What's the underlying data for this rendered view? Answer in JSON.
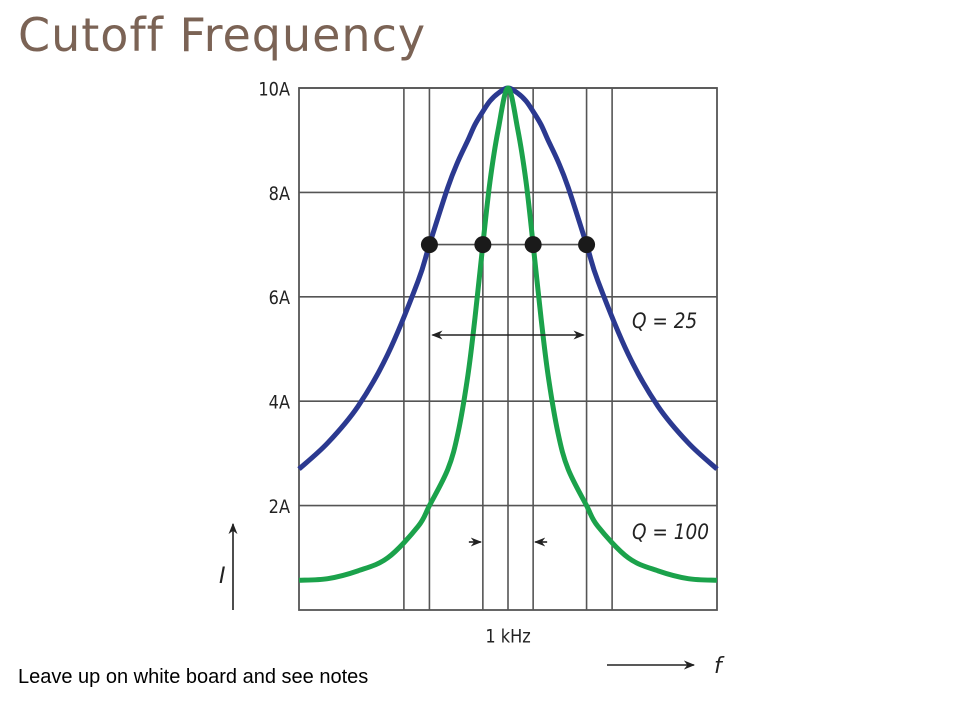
{
  "title": "Cutoff Frequency",
  "note": "Leave up on white board and see notes",
  "chart_data": {
    "type": "line",
    "x_label": "f",
    "y_label": "I",
    "x": [
      0.9468,
      0.9541,
      0.9618,
      0.9694,
      0.9771,
      0.98,
      0.9847,
      0.9873,
      0.9898,
      0.9916,
      0.9936,
      0.9954,
      0.9975,
      1,
      1.0025,
      1.0046,
      1.0064,
      1.0084,
      1.0102,
      1.0127,
      1.0153,
      1.02,
      1.0229,
      1.0306,
      1.0382,
      1.0459,
      1.0532
    ],
    "series": [
      {
        "name": "Q = 25",
        "color": "#2b3990",
        "values": [
          2.7,
          3.2,
          3.9,
          4.9,
          6.3,
          7.0,
          8.1,
          8.6,
          9.0,
          9.3,
          9.55,
          9.75,
          9.9,
          10,
          9.9,
          9.75,
          9.55,
          9.3,
          9.0,
          8.6,
          8.1,
          7.0,
          6.3,
          4.9,
          3.9,
          3.2,
          2.7
        ]
      },
      {
        "name": "Q = 100",
        "color": "#1ba24b",
        "values": [
          0.57,
          0.6,
          0.75,
          1.0,
          1.6,
          2.0,
          2.7,
          3.4,
          4.5,
          5.6,
          7.0,
          8.2,
          9.2,
          10,
          9.2,
          8.2,
          7.0,
          5.6,
          4.5,
          3.4,
          2.7,
          2.0,
          1.6,
          1.0,
          0.75,
          0.6,
          0.57
        ]
      }
    ],
    "half_power_points": {
      "x": [
        0.98,
        0.9936,
        1.0064,
        1.02
      ],
      "y": [
        7,
        7,
        7,
        7
      ],
      "color": "#1a1a1a"
    },
    "xlim": [
      0.9468,
      1.0532
    ],
    "xticks": [
      {
        "value": 1,
        "label": "1 kHz"
      }
    ],
    "x_gridlines": [
      0.9735,
      1.0265
    ],
    "ylim": [
      0,
      10
    ],
    "yticks": [
      {
        "value": 2,
        "label": "2A"
      },
      {
        "value": 4,
        "label": "4A"
      },
      {
        "value": 6,
        "label": "6A"
      },
      {
        "value": 8,
        "label": "8A"
      },
      {
        "value": 10,
        "label": "10A"
      }
    ],
    "grid": true
  }
}
